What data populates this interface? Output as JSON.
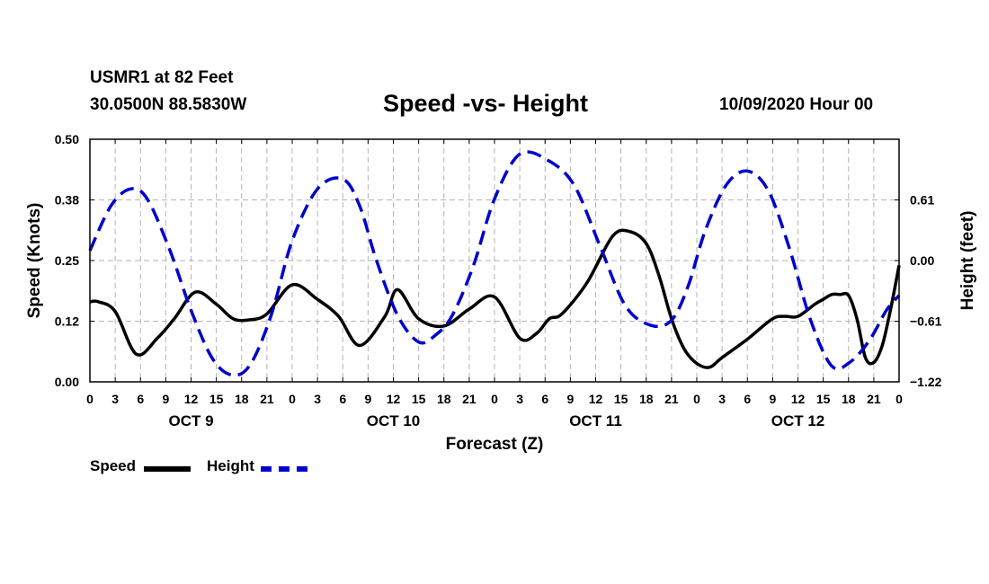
{
  "header": {
    "station": "USMR1 at 82 Feet",
    "coords": "30.0500N 88.5830W",
    "title": "Speed -vs- Height",
    "datetime": "10/09/2020 Hour 00"
  },
  "legend": {
    "speed_label": "Speed",
    "height_label": "Height"
  },
  "colors": {
    "speed": "#000000",
    "height": "#0000cc",
    "grid": "#b4b4b4"
  },
  "chart_data": {
    "type": "line",
    "title": "Speed -vs- Height",
    "xlabel": "Forecast (Z)",
    "ylabel": "Speed (Knots)",
    "y2label": "Height (feet)",
    "xlim": [
      0,
      96
    ],
    "ylim": [
      0,
      0.5
    ],
    "y2lim": [
      -1.22,
      1.22
    ],
    "x_ticks": [
      0,
      3,
      6,
      9,
      12,
      15,
      18,
      21,
      24,
      27,
      30,
      33,
      36,
      39,
      42,
      45,
      48,
      51,
      54,
      57,
      60,
      63,
      66,
      69,
      72,
      75,
      78,
      81,
      84,
      87,
      90,
      93,
      96
    ],
    "x_tick_labels": [
      "0",
      "3",
      "6",
      "9",
      "12",
      "15",
      "18",
      "21",
      "0",
      "3",
      "6",
      "9",
      "12",
      "15",
      "18",
      "21",
      "0",
      "3",
      "6",
      "9",
      "12",
      "15",
      "18",
      "21",
      "0",
      "3",
      "6",
      "9",
      "12",
      "15",
      "18",
      "21",
      "0"
    ],
    "y_ticks": [
      0,
      0.125,
      0.25,
      0.375,
      0.5
    ],
    "y_tick_labels": [
      "0.00",
      "0.12",
      "0.25",
      "0.38",
      "0.50"
    ],
    "y2_ticks": [
      -1.22,
      -0.61,
      0.0,
      0.61
    ],
    "y2_tick_labels": [
      "−1.22",
      "−0.61",
      "0.00",
      "0.61"
    ],
    "day_labels": [
      {
        "x": 12,
        "label": "OCT 9"
      },
      {
        "x": 36,
        "label": "OCT 10"
      },
      {
        "x": 60,
        "label": "OCT 11"
      },
      {
        "x": 84,
        "label": "OCT 12"
      }
    ],
    "grid": true,
    "legend_position": "bottom-left",
    "series": [
      {
        "name": "Speed",
        "axis": "left",
        "style": "solid",
        "x": [
          0,
          1,
          3,
          5.5,
          8,
          10,
          12.5,
          15,
          17,
          19,
          21,
          24,
          27,
          29.5,
          32,
          35,
          36.5,
          39,
          42,
          45,
          48,
          51,
          53,
          54.5,
          56,
          59,
          62,
          64,
          66,
          67.5,
          69,
          70.5,
          72,
          73.5,
          75,
          78,
          81,
          82.5,
          84,
          86,
          87,
          88,
          89,
          90,
          91,
          92,
          93,
          94,
          95,
          96
        ],
        "values": [
          0.165,
          0.165,
          0.145,
          0.057,
          0.09,
          0.13,
          0.185,
          0.16,
          0.13,
          0.128,
          0.14,
          0.2,
          0.17,
          0.135,
          0.075,
          0.135,
          0.19,
          0.13,
          0.115,
          0.15,
          0.175,
          0.09,
          0.1,
          0.13,
          0.14,
          0.205,
          0.3,
          0.31,
          0.285,
          0.22,
          0.13,
          0.068,
          0.038,
          0.03,
          0.05,
          0.088,
          0.13,
          0.135,
          0.135,
          0.16,
          0.17,
          0.18,
          0.18,
          0.178,
          0.13,
          0.05,
          0.04,
          0.075,
          0.15,
          0.24
        ]
      },
      {
        "name": "Height",
        "axis": "right",
        "style": "dashed",
        "x": [
          0,
          2.5,
          4.8,
          6.8,
          9.5,
          12,
          14.5,
          16.8,
          19,
          21.5,
          24,
          27,
          30,
          32,
          34,
          36.5,
          39,
          41,
          43,
          45.5,
          48,
          51,
          54.5,
          57.5,
          60.5,
          63.5,
          66.5,
          69,
          71,
          73,
          75.5,
          78,
          80.5,
          83,
          85.5,
          88,
          90.2,
          92.5,
          94.5,
          96
        ],
        "values": [
          0.1,
          0.55,
          0.72,
          0.62,
          0.1,
          -0.5,
          -0.98,
          -1.15,
          -1.05,
          -0.55,
          0.2,
          0.72,
          0.82,
          0.55,
          0.0,
          -0.55,
          -0.82,
          -0.75,
          -0.55,
          -0.05,
          0.62,
          1.07,
          1.0,
          0.75,
          0.15,
          -0.45,
          -0.65,
          -0.6,
          -0.25,
          0.3,
          0.76,
          0.9,
          0.7,
          0.12,
          -0.6,
          -1.06,
          -1.02,
          -0.8,
          -0.5,
          -0.35
        ]
      }
    ]
  }
}
